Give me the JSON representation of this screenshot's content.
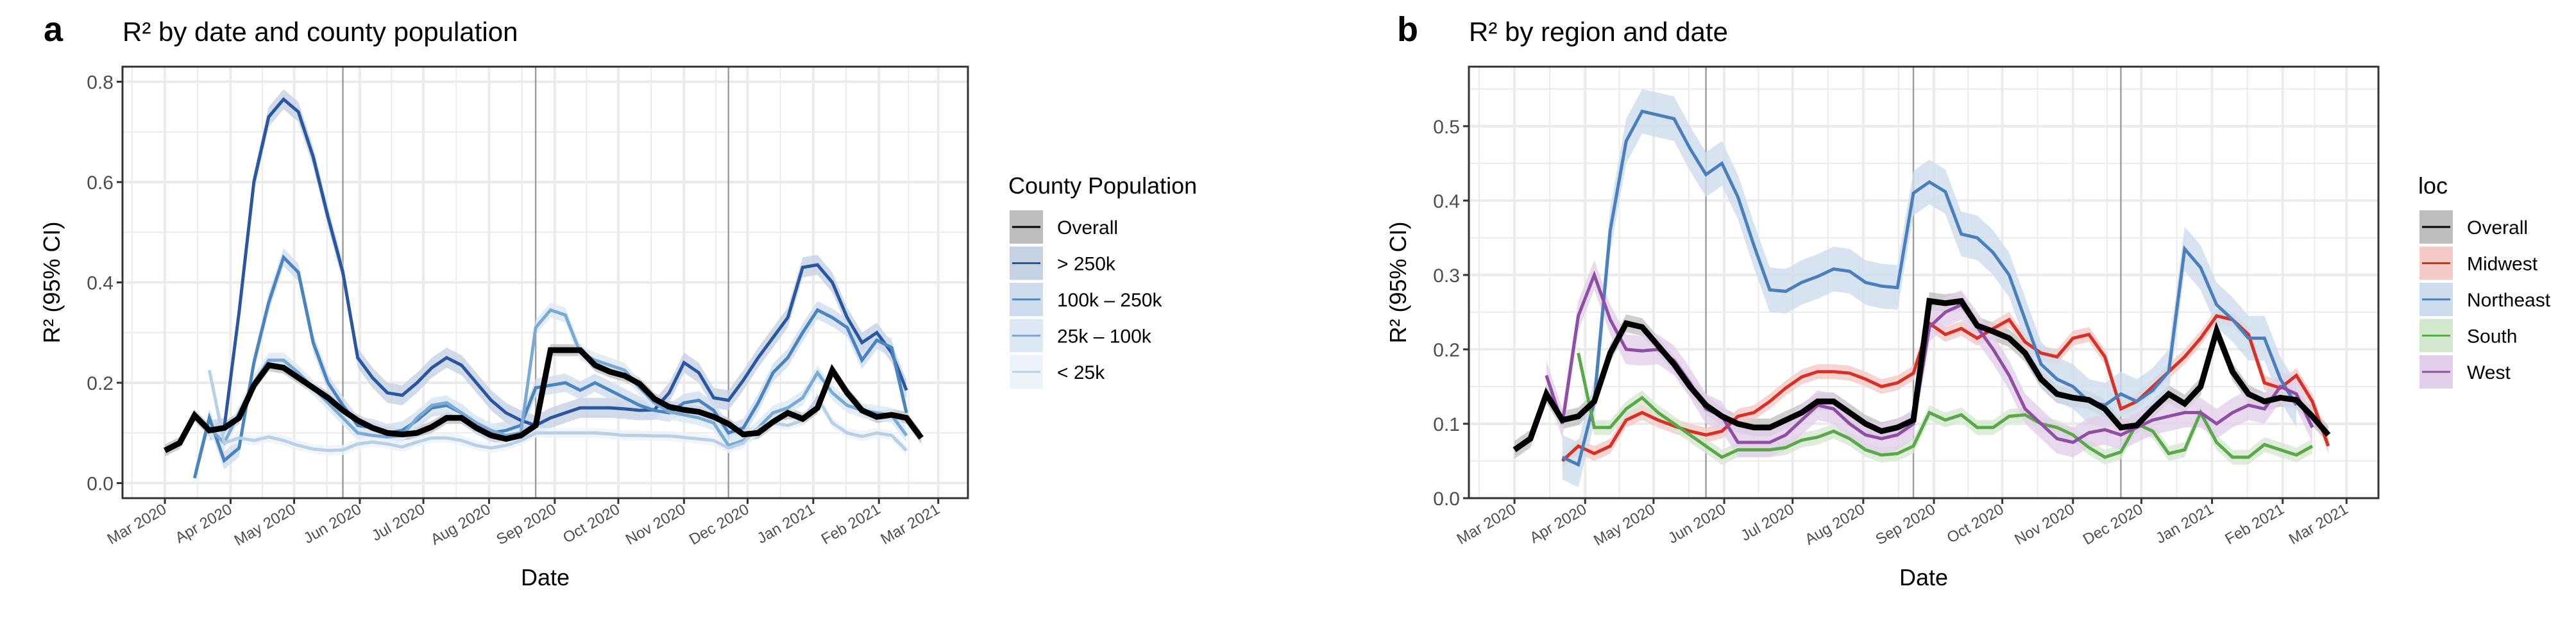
{
  "figure": {
    "panels": [
      {
        "letter": "a",
        "title": "R² by date and county population"
      },
      {
        "letter": "b",
        "title": "R² by region and date"
      }
    ]
  },
  "chart_data": [
    {
      "type": "line",
      "panel": "a",
      "title": "R² by date and county population",
      "xlabel": "Date",
      "ylabel": "R² (95% CI)",
      "ylim": [
        -0.03,
        0.83
      ],
      "yticks": [
        "0.0",
        "0.2",
        "0.4",
        "0.6",
        "0.8"
      ],
      "ytick_values": [
        0.0,
        0.2,
        0.4,
        0.6,
        0.8
      ],
      "xlim": [
        "2020-02-10",
        "2021-03-15"
      ],
      "xticks": [
        "Mar 2020",
        "Apr 2020",
        "May 2020",
        "Jun 2020",
        "Jul 2020",
        "Aug 2020",
        "Sep 2020",
        "Oct 2020",
        "Nov 2020",
        "Dec 2020",
        "Jan 2021",
        "Feb 2021",
        "Mar 2021"
      ],
      "xtick_dates": [
        "2020-03-01",
        "2020-04-01",
        "2020-05-01",
        "2020-06-01",
        "2020-07-01",
        "2020-08-01",
        "2020-09-01",
        "2020-10-01",
        "2020-11-01",
        "2020-12-01",
        "2021-01-01",
        "2021-02-01",
        "2021-03-01"
      ],
      "vlines": [
        "2020-05-24",
        "2020-08-23",
        "2020-11-22"
      ],
      "grid": true,
      "legend": {
        "title": "County Population",
        "position": "right"
      },
      "x_start": "2020-03-01",
      "x_step_days": 7,
      "series": [
        {
          "name": "Overall",
          "color": "#000000",
          "fill": "#bdbdbd",
          "ci": 0.012,
          "width": "thick",
          "values": [
            0.065,
            0.08,
            0.135,
            0.105,
            0.11,
            0.13,
            0.195,
            0.235,
            0.23,
            0.21,
            0.19,
            0.17,
            0.145,
            0.125,
            0.11,
            0.1,
            0.097,
            0.1,
            0.112,
            0.13,
            0.13,
            0.11,
            0.095,
            0.088,
            0.095,
            0.115,
            0.265,
            0.265,
            0.265,
            0.235,
            0.222,
            0.214,
            0.198,
            0.168,
            0.152,
            0.146,
            0.142,
            0.132,
            0.118,
            0.097,
            0.1,
            0.122,
            0.14,
            0.128,
            0.15,
            0.225,
            0.18,
            0.145,
            0.132,
            0.136,
            0.13,
            0.09
          ]
        },
        {
          "name": "> 250k",
          "color": "#2a56a0",
          "fill": "#c6d1e4",
          "ci": 0.02,
          "start": 3,
          "values": [
            null,
            null,
            null,
            0.105,
            0.11,
            0.34,
            0.6,
            0.73,
            0.765,
            0.74,
            0.65,
            0.53,
            0.42,
            0.25,
            0.21,
            0.18,
            0.175,
            0.2,
            0.23,
            0.25,
            0.235,
            0.2,
            0.165,
            0.14,
            0.125,
            0.115,
            0.13,
            0.14,
            0.15,
            0.15,
            0.15,
            0.148,
            0.145,
            0.146,
            0.18,
            0.24,
            0.22,
            0.17,
            0.165,
            0.205,
            0.25,
            0.29,
            0.33,
            0.43,
            0.435,
            0.4,
            0.33,
            0.28,
            0.3,
            0.26,
            0.185,
            null
          ]
        },
        {
          "name": "100k – 250k",
          "color": "#4a84bf",
          "fill": "#cfdced",
          "ci": 0.018,
          "start": 2,
          "values": [
            null,
            null,
            0.01,
            0.13,
            0.045,
            0.07,
            0.24,
            0.36,
            0.45,
            0.42,
            0.28,
            0.2,
            0.155,
            0.115,
            0.11,
            0.1,
            0.105,
            0.125,
            0.15,
            0.155,
            0.14,
            0.115,
            0.1,
            0.105,
            0.115,
            0.19,
            0.195,
            0.2,
            0.185,
            0.2,
            0.185,
            0.17,
            0.155,
            0.145,
            0.14,
            0.16,
            0.165,
            0.145,
            0.1,
            0.11,
            0.16,
            0.22,
            0.25,
            0.3,
            0.345,
            0.33,
            0.31,
            0.245,
            0.285,
            0.27,
            0.14,
            null
          ]
        },
        {
          "name": "25k – 100k",
          "color": "#7aa9d4",
          "fill": "#dce8f3",
          "ci": 0.015,
          "start": 3,
          "values": [
            null,
            null,
            null,
            0.11,
            0.08,
            0.14,
            0.2,
            0.245,
            0.245,
            0.22,
            0.19,
            0.16,
            0.13,
            0.1,
            0.095,
            0.092,
            0.095,
            0.13,
            0.155,
            0.16,
            0.14,
            0.12,
            0.105,
            0.095,
            0.1,
            0.31,
            0.345,
            0.335,
            0.26,
            0.245,
            0.235,
            0.225,
            0.19,
            0.16,
            0.142,
            0.136,
            0.13,
            0.12,
            0.075,
            0.085,
            0.11,
            0.14,
            0.15,
            0.17,
            0.22,
            0.18,
            0.155,
            0.145,
            0.14,
            0.135,
            0.095,
            null
          ]
        },
        {
          "name": "< 25k",
          "color": "#b8d0e6",
          "fill": "#eef3f9",
          "ci": 0.01,
          "start": 3,
          "values": [
            null,
            null,
            null,
            0.225,
            0.08,
            0.09,
            0.085,
            0.092,
            0.085,
            0.075,
            0.068,
            0.065,
            0.066,
            0.078,
            0.082,
            0.078,
            0.072,
            0.082,
            0.09,
            0.09,
            0.085,
            0.075,
            0.07,
            0.075,
            0.085,
            0.1,
            0.1,
            0.1,
            0.1,
            0.1,
            0.098,
            0.095,
            0.095,
            0.094,
            0.094,
            0.091,
            0.088,
            0.085,
            0.07,
            0.08,
            0.11,
            0.12,
            0.115,
            0.125,
            0.17,
            0.12,
            0.1,
            0.093,
            0.1,
            0.095,
            0.065,
            null
          ]
        }
      ]
    },
    {
      "type": "line",
      "panel": "b",
      "title": "R² by region and date",
      "xlabel": "Date",
      "ylabel": "R² (95% CI)",
      "ylim": [
        0.0,
        0.58
      ],
      "yticks": [
        "0.0",
        "0.1",
        "0.2",
        "0.3",
        "0.4",
        "0.5"
      ],
      "ytick_values": [
        0.0,
        0.1,
        0.2,
        0.3,
        0.4,
        0.5
      ],
      "xlim": [
        "2020-02-10",
        "2021-03-15"
      ],
      "xticks": [
        "Mar 2020",
        "Apr 2020",
        "May 2020",
        "Jun 2020",
        "Jul 2020",
        "Aug 2020",
        "Sep 2020",
        "Oct 2020",
        "Nov 2020",
        "Dec 2020",
        "Jan 2021",
        "Feb 2021",
        "Mar 2021"
      ],
      "xtick_dates": [
        "2020-03-01",
        "2020-04-01",
        "2020-05-01",
        "2020-06-01",
        "2020-07-01",
        "2020-08-01",
        "2020-09-01",
        "2020-10-01",
        "2020-11-01",
        "2020-12-01",
        "2021-01-01",
        "2021-02-01",
        "2021-03-01"
      ],
      "vlines": [
        "2020-05-24",
        "2020-08-23",
        "2020-11-22"
      ],
      "grid": true,
      "legend": {
        "title": "loc",
        "position": "right"
      },
      "x_start": "2020-03-01",
      "x_step_days": 7,
      "series": [
        {
          "name": "Overall",
          "color": "#000000",
          "fill": "#bdbdbd",
          "ci": 0.012,
          "width": "thick",
          "values": [
            0.065,
            0.08,
            0.14,
            0.105,
            0.11,
            0.13,
            0.195,
            0.235,
            0.23,
            0.205,
            0.18,
            0.15,
            0.125,
            0.11,
            0.1,
            0.095,
            0.095,
            0.105,
            0.115,
            0.13,
            0.13,
            0.115,
            0.1,
            0.09,
            0.095,
            0.105,
            0.265,
            0.262,
            0.265,
            0.232,
            0.224,
            0.215,
            0.195,
            0.16,
            0.14,
            0.135,
            0.132,
            0.12,
            0.095,
            0.098,
            0.12,
            0.14,
            0.127,
            0.15,
            0.225,
            0.17,
            0.14,
            0.13,
            0.135,
            0.132,
            0.11,
            0.085
          ]
        },
        {
          "name": "Midwest",
          "color": "#d73027",
          "fill": "#f4c9c6",
          "ci": 0.01,
          "start": 3,
          "values": [
            null,
            null,
            null,
            0.05,
            0.07,
            0.06,
            0.07,
            0.105,
            0.115,
            0.105,
            0.097,
            0.09,
            0.085,
            0.09,
            0.11,
            0.115,
            0.13,
            0.148,
            0.163,
            0.17,
            0.17,
            0.168,
            0.16,
            0.15,
            0.155,
            0.168,
            0.235,
            0.22,
            0.228,
            0.215,
            0.228,
            0.24,
            0.21,
            0.195,
            0.19,
            0.215,
            0.22,
            0.19,
            0.12,
            0.13,
            0.15,
            0.17,
            0.19,
            0.215,
            0.245,
            0.24,
            0.22,
            0.155,
            0.148,
            0.165,
            0.13,
            0.07
          ]
        },
        {
          "name": "Northeast",
          "color": "#4a7fbb",
          "fill": "#cddcec",
          "ci": 0.03,
          "start": 3,
          "values": [
            null,
            null,
            null,
            0.055,
            0.045,
            0.13,
            0.36,
            0.48,
            0.52,
            0.515,
            0.51,
            0.47,
            0.435,
            0.45,
            0.405,
            0.34,
            0.28,
            0.278,
            0.29,
            0.298,
            0.308,
            0.305,
            0.29,
            0.285,
            0.283,
            0.41,
            0.425,
            0.412,
            0.355,
            0.35,
            0.33,
            0.3,
            0.24,
            0.18,
            0.16,
            0.15,
            0.13,
            0.125,
            0.14,
            0.13,
            0.145,
            0.17,
            0.335,
            0.31,
            0.26,
            0.24,
            0.215,
            0.215,
            0.16,
            0.125,
            null,
            null
          ]
        },
        {
          "name": "South",
          "color": "#5aa84a",
          "fill": "#d4e8cf",
          "ci": 0.01,
          "start": 4,
          "values": [
            null,
            null,
            null,
            null,
            0.195,
            0.095,
            0.095,
            0.12,
            0.135,
            0.115,
            0.1,
            0.085,
            0.07,
            0.055,
            0.065,
            0.065,
            0.065,
            0.068,
            0.078,
            0.082,
            0.09,
            0.08,
            0.065,
            0.058,
            0.06,
            0.07,
            0.115,
            0.105,
            0.112,
            0.095,
            0.095,
            0.11,
            0.112,
            0.1,
            0.095,
            0.085,
            0.068,
            0.055,
            0.062,
            0.1,
            0.09,
            0.06,
            0.065,
            0.115,
            0.075,
            0.055,
            0.055,
            0.072,
            0.065,
            0.058,
            0.07,
            null
          ]
        },
        {
          "name": "West",
          "color": "#8e4fa3",
          "fill": "#e2d0ea",
          "ci": 0.02,
          "start": 2,
          "values": [
            null,
            null,
            0.165,
            0.1,
            0.245,
            0.3,
            0.24,
            0.2,
            0.198,
            0.2,
            0.185,
            0.155,
            0.12,
            0.11,
            0.075,
            0.075,
            0.075,
            0.085,
            0.105,
            0.125,
            0.12,
            0.1,
            0.085,
            0.08,
            0.085,
            0.1,
            0.23,
            0.25,
            0.26,
            0.23,
            0.2,
            0.165,
            0.12,
            0.1,
            0.08,
            0.075,
            0.088,
            0.092,
            0.085,
            0.095,
            0.105,
            0.11,
            0.115,
            0.115,
            0.1,
            0.115,
            0.125,
            0.12,
            0.15,
            0.14,
            0.095,
            null
          ]
        }
      ]
    }
  ],
  "legends": [
    {
      "title": "County Population",
      "items": [
        {
          "label": "Overall",
          "line": "#000000",
          "fill": "#bdbdbd"
        },
        {
          "label": "> 250k",
          "line": "#2a56a0",
          "fill": "#c6d1e4"
        },
        {
          "label": "100k – 250k",
          "line": "#4a84bf",
          "fill": "#cfdced"
        },
        {
          "label": "25k – 100k",
          "line": "#7aa9d4",
          "fill": "#dce8f3"
        },
        {
          "label": "< 25k",
          "line": "#b8d0e6",
          "fill": "#eef3f9"
        }
      ]
    },
    {
      "title": "loc",
      "items": [
        {
          "label": "Overall",
          "line": "#000000",
          "fill": "#bdbdbd"
        },
        {
          "label": "Midwest",
          "line": "#d73027",
          "fill": "#f4c9c6"
        },
        {
          "label": "Northeast",
          "line": "#4a7fbb",
          "fill": "#cddcec"
        },
        {
          "label": "South",
          "line": "#5aa84a",
          "fill": "#d4e8cf"
        },
        {
          "label": "West",
          "line": "#8e4fa3",
          "fill": "#e2d0ea"
        }
      ]
    }
  ]
}
